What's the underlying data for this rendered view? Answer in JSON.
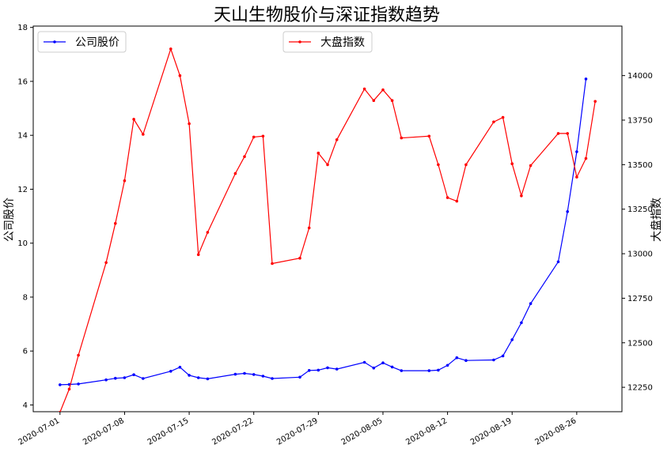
{
  "chart_data": {
    "type": "line",
    "title": "天山生物股价与深证指数趋势",
    "x": [
      "2020-07-01",
      "2020-07-02",
      "2020-07-03",
      "2020-07-06",
      "2020-07-07",
      "2020-07-08",
      "2020-07-09",
      "2020-07-10",
      "2020-07-13",
      "2020-07-14",
      "2020-07-15",
      "2020-07-16",
      "2020-07-17",
      "2020-07-20",
      "2020-07-21",
      "2020-07-22",
      "2020-07-23",
      "2020-07-24",
      "2020-07-27",
      "2020-07-28",
      "2020-07-29",
      "2020-07-30",
      "2020-07-31",
      "2020-08-03",
      "2020-08-04",
      "2020-08-05",
      "2020-08-06",
      "2020-08-07",
      "2020-08-10",
      "2020-08-11",
      "2020-08-12",
      "2020-08-13",
      "2020-08-14",
      "2020-08-17",
      "2020-08-18",
      "2020-08-19",
      "2020-08-20",
      "2020-08-21",
      "2020-08-24",
      "2020-08-25",
      "2020-08-26",
      "2020-08-27",
      "2020-08-28"
    ],
    "xticks": [
      "2020-07-01",
      "2020-07-08",
      "2020-07-15",
      "2020-07-22",
      "2020-07-29",
      "2020-08-05",
      "2020-08-12",
      "2020-08-19",
      "2020-08-26"
    ],
    "series": [
      {
        "name": "公司股价",
        "axis": "left",
        "color": "#0000ff",
        "values": [
          4.75,
          4.76,
          4.78,
          4.93,
          4.99,
          5.01,
          5.12,
          4.98,
          5.25,
          5.4,
          5.1,
          5.01,
          4.97,
          5.14,
          5.17,
          5.13,
          5.07,
          4.98,
          5.03,
          5.28,
          5.29,
          5.38,
          5.33,
          5.58,
          5.37,
          5.56,
          5.41,
          5.27,
          5.27,
          5.29,
          5.47,
          5.75,
          5.65,
          5.67,
          5.82,
          6.42,
          7.05,
          7.76,
          9.31,
          11.17,
          13.39,
          16.09,
          null
        ]
      },
      {
        "name": "大盘指数",
        "axis": "right",
        "color": "#ff0000",
        "values": [
          12110,
          12240,
          12430,
          12950,
          13170,
          13410,
          13755,
          13670,
          14150,
          14000,
          13730,
          12995,
          13120,
          13450,
          13545,
          13655,
          13660,
          12945,
          12975,
          13145,
          13565,
          13500,
          13640,
          13925,
          13860,
          13920,
          13860,
          13650,
          13660,
          13500,
          13315,
          13295,
          13500,
          13740,
          13765,
          13505,
          13325,
          13495,
          13675,
          13675,
          13430,
          13535,
          13855
        ]
      }
    ],
    "ylabel_left": "公司股价",
    "ylabel_right": "大盘指数",
    "ylim_left": [
      3.75,
      18.05
    ],
    "ylim_right": [
      12113,
      14278
    ],
    "yticks_left": [
      4,
      6,
      8,
      10,
      12,
      14,
      16,
      18
    ],
    "yticks_right": [
      12250,
      12500,
      12750,
      13000,
      13250,
      13500,
      13750,
      14000
    ],
    "legend_left": "upper-left",
    "legend_right": "upper-center",
    "grid": false
  }
}
